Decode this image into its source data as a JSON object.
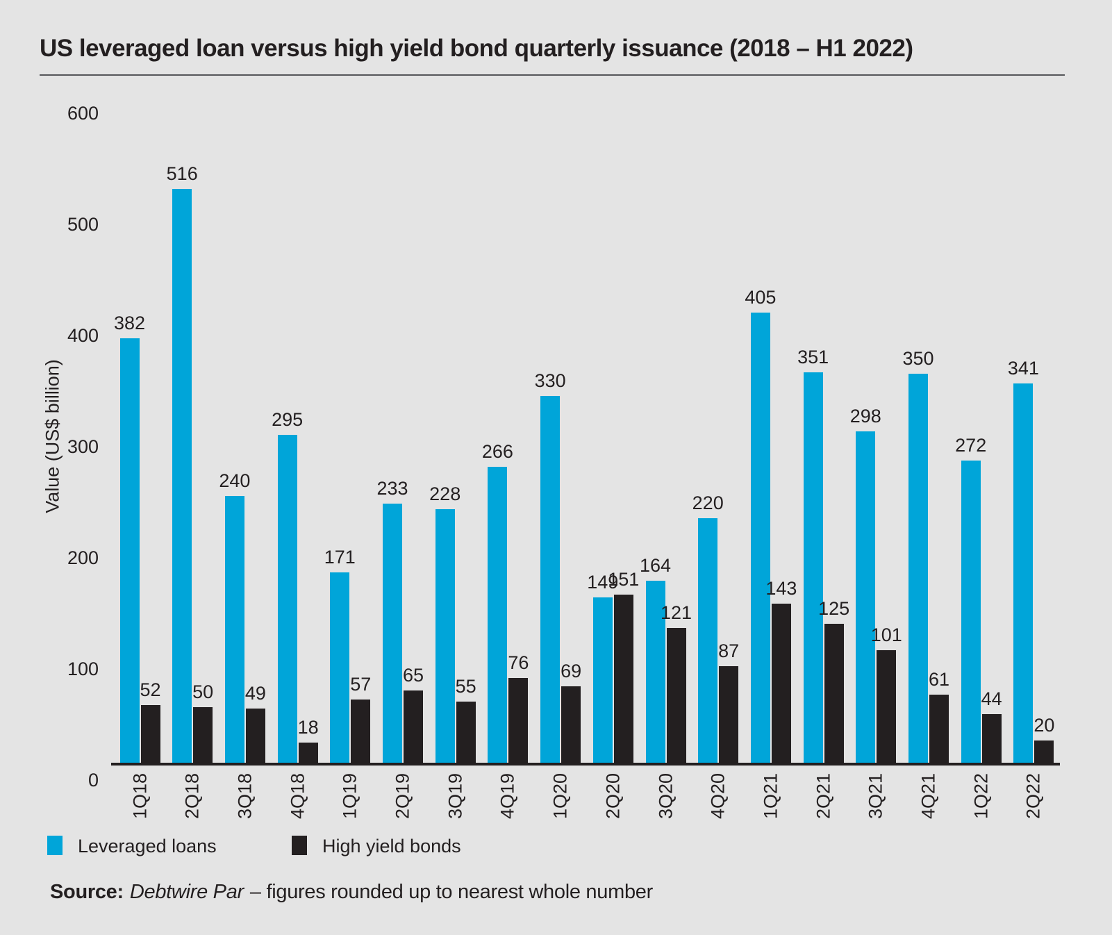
{
  "title": "US leveraged loan versus high yield bond quarterly issuance (2018 – H1 2022)",
  "colors": {
    "background": "#e4e4e4",
    "leveraged_loans": "#00a5d9",
    "high_yield_bonds": "#231f20",
    "axis": "#231f20",
    "text": "#231f20",
    "rule": "#55565a"
  },
  "chart_data": {
    "type": "bar",
    "title": "US leveraged loan versus high yield bond quarterly issuance (2018 – H1 2022)",
    "categories": [
      "1Q18",
      "2Q18",
      "3Q18",
      "4Q18",
      "1Q19",
      "2Q19",
      "3Q19",
      "4Q19",
      "1Q20",
      "2Q20",
      "3Q20",
      "4Q20",
      "1Q21",
      "2Q21",
      "3Q21",
      "4Q21",
      "1Q22",
      "2Q22"
    ],
    "series": [
      {
        "name": "Leveraged loans",
        "color": "#00a5d9",
        "values": [
          382,
          516,
          240,
          295,
          171,
          233,
          228,
          266,
          330,
          149,
          164,
          220,
          405,
          351,
          298,
          350,
          272,
          341
        ]
      },
      {
        "name": "High yield bonds",
        "color": "#231f20",
        "values": [
          52,
          50,
          49,
          18,
          57,
          65,
          55,
          76,
          69,
          151,
          121,
          87,
          143,
          125,
          101,
          61,
          44,
          20
        ]
      }
    ],
    "xlabel": "",
    "ylabel": "Value (US$ billion)",
    "yticks": [
      0,
      100,
      200,
      300,
      400,
      500,
      600
    ],
    "ylim": [
      0,
      600
    ],
    "grid": false,
    "legend_position": "bottom",
    "value_labels": true
  },
  "legend": {
    "items": [
      {
        "label": "Leveraged loans",
        "color": "#00a5d9"
      },
      {
        "label": "High yield bonds",
        "color": "#231f20"
      }
    ]
  },
  "source": {
    "prefix": "Source:",
    "publication": "Debtwire Par",
    "note": "– figures rounded up to nearest whole number"
  }
}
